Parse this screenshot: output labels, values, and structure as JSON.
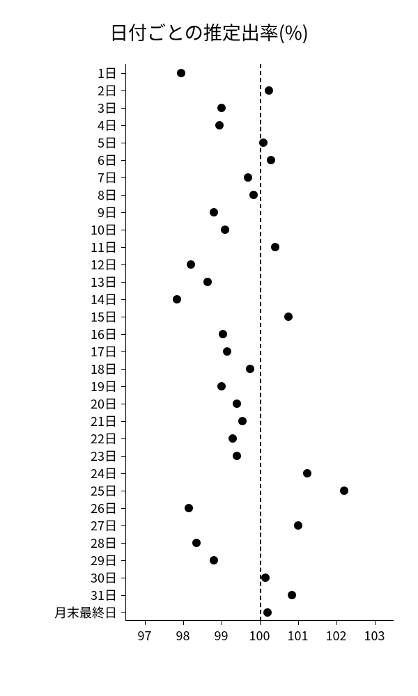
{
  "chart": {
    "type": "scatter",
    "title": "日付ごとの推定出率(%)",
    "title_fontsize": 27,
    "background_color": "#ffffff",
    "axis_color": "#000000",
    "label_fontsize": 18,
    "point_color": "#000000",
    "point_radius": 6,
    "xlim": [
      96.5,
      103.5
    ],
    "xticks": [
      97,
      98,
      99,
      100,
      101,
      102,
      103
    ],
    "xtick_labels": [
      "97",
      "98",
      "99",
      "100",
      "101",
      "102",
      "103"
    ],
    "reference_line_x": 100,
    "reference_line_dash": true,
    "y_categories": [
      "1日",
      "2日",
      "3日",
      "4日",
      "5日",
      "6日",
      "7日",
      "8日",
      "9日",
      "10日",
      "11日",
      "12日",
      "13日",
      "14日",
      "15日",
      "16日",
      "17日",
      "18日",
      "19日",
      "20日",
      "21日",
      "22日",
      "23日",
      "24日",
      "25日",
      "26日",
      "27日",
      "28日",
      "29日",
      "30日",
      "31日",
      "月末最終日"
    ],
    "values": [
      97.95,
      100.25,
      99.0,
      98.95,
      100.1,
      100.3,
      99.7,
      99.85,
      98.8,
      99.1,
      100.4,
      98.2,
      98.65,
      97.85,
      100.75,
      99.05,
      99.15,
      99.75,
      99.0,
      99.4,
      99.55,
      99.3,
      99.4,
      101.25,
      102.2,
      98.15,
      101.0,
      98.35,
      98.8,
      100.15,
      100.85,
      100.2
    ]
  }
}
